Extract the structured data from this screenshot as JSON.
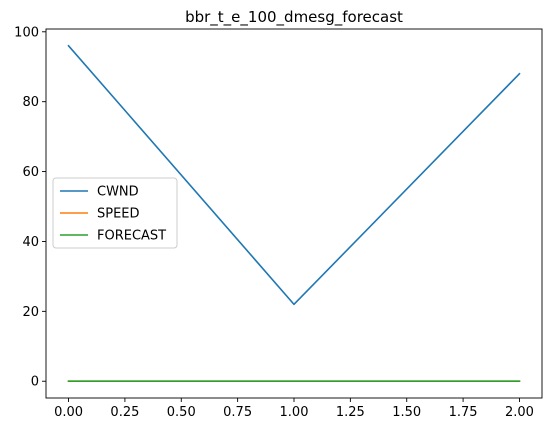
{
  "chart_data": {
    "type": "line",
    "title": "bbr_t_e_100_dmesg_forecast",
    "xlabel": "",
    "ylabel": "",
    "xlim": [
      -0.1,
      2.1
    ],
    "ylim": [
      -4.8,
      100.8
    ],
    "x_ticks": [
      0.0,
      0.25,
      0.5,
      0.75,
      1.0,
      1.25,
      1.5,
      1.75,
      2.0
    ],
    "x_tick_labels": [
      "0.00",
      "0.25",
      "0.50",
      "0.75",
      "1.00",
      "1.25",
      "1.50",
      "1.75",
      "2.00"
    ],
    "y_ticks": [
      0,
      20,
      40,
      60,
      80,
      100
    ],
    "y_tick_labels": [
      "0",
      "20",
      "40",
      "60",
      "80",
      "100"
    ],
    "grid": false,
    "legend_position": "center-left",
    "x": [
      0,
      1,
      2
    ],
    "series": [
      {
        "name": "CWND",
        "color": "#1f77b4",
        "values": [
          96,
          22,
          88
        ]
      },
      {
        "name": "SPEED",
        "color": "#ff7f0e",
        "values": [
          0,
          0,
          0
        ]
      },
      {
        "name": "FORECAST",
        "color": "#2ca02c",
        "values": [
          0,
          0,
          0
        ]
      }
    ]
  }
}
